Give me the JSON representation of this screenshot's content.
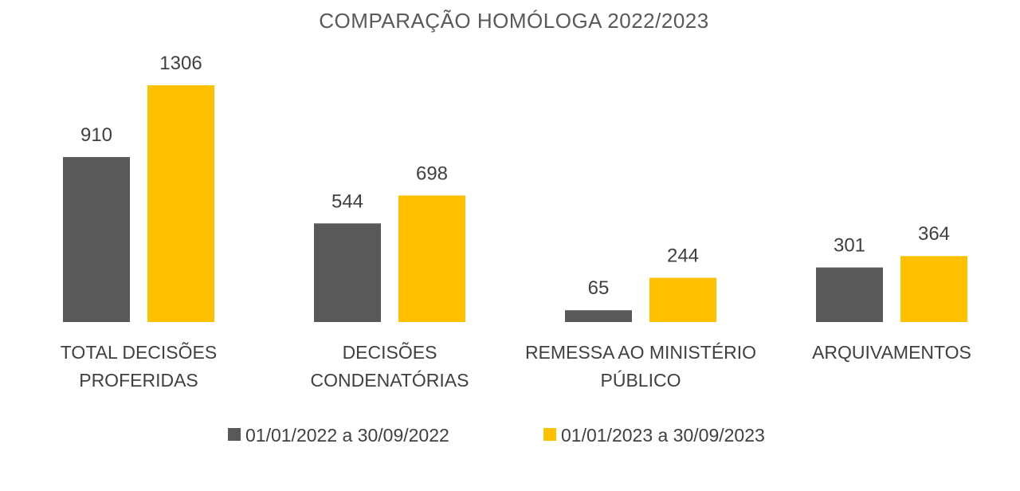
{
  "chart_data": {
    "type": "bar",
    "title": "COMPARAÇÃO HOMÓLOGA 2022/2023",
    "categories": [
      [
        "TOTAL DECISÕES",
        "PROFERIDAS"
      ],
      [
        "DECISÕES",
        "CONDENATÓRIAS"
      ],
      [
        "REMESSA AO MINISTÉRIO",
        "PÚBLICO"
      ],
      [
        "ARQUIVAMENTOS"
      ]
    ],
    "series": [
      {
        "name": "01/01/2022 a 30/09/2022",
        "color": "#595959",
        "values": [
          910,
          544,
          65,
          301
        ]
      },
      {
        "name": "01/01/2023 a 30/09/2023",
        "color": "#FFC000",
        "values": [
          1306,
          698,
          244,
          364
        ]
      }
    ],
    "xlabel": "",
    "ylabel": "",
    "ylim": [
      0,
      1306
    ],
    "grid": false,
    "data_labels": true,
    "legend_position": "bottom"
  }
}
